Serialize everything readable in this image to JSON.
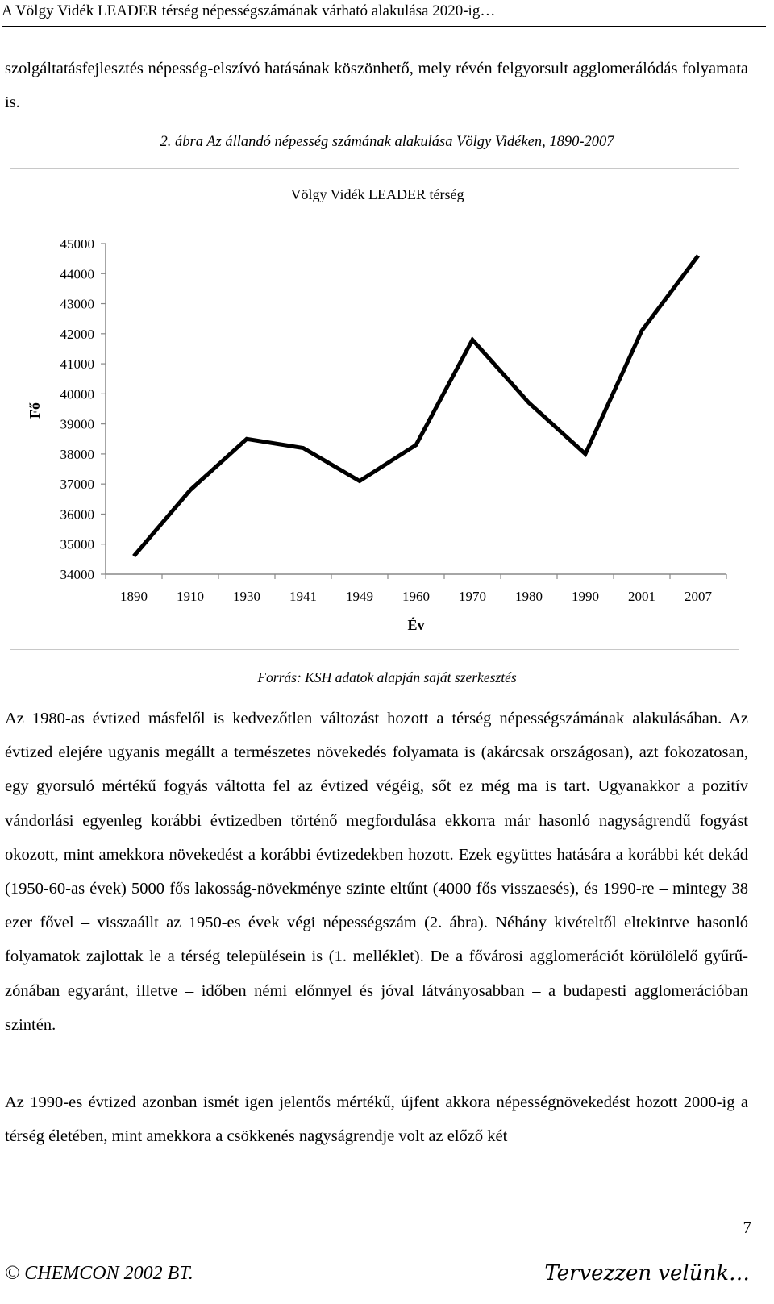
{
  "header": "A Völgy Vidék LEADER térség népességszámának várható alakulása 2020-ig…",
  "para_top": "szolgáltatásfejlesztés népesség-elszívó hatásának köszönhető, mely révén felgyorsult agglomerálódás folyamata is.",
  "figure_caption": "2. ábra Az állandó népesség számának alakulása Völgy Vidéken, 1890-2007",
  "chart_data": {
    "type": "line",
    "title": "Völgy Vidék LEADER térség",
    "xlabel": "Év",
    "ylabel": "Fő",
    "categories": [
      "1890",
      "1910",
      "1930",
      "1941",
      "1949",
      "1960",
      "1970",
      "1980",
      "1990",
      "2001",
      "2007"
    ],
    "values": [
      34600,
      36800,
      38500,
      38200,
      37100,
      38300,
      41800,
      39700,
      38000,
      42100,
      44600
    ],
    "ylim": [
      34000,
      45000
    ],
    "yticks": [
      "34000",
      "35000",
      "36000",
      "37000",
      "38000",
      "39000",
      "40000",
      "41000",
      "42000",
      "43000",
      "44000",
      "45000"
    ],
    "grid": false,
    "legend": "none"
  },
  "source": "Forrás: KSH adatok alapján saját szerkesztés",
  "para_1": "Az 1980-as évtized másfelől is kedvezőtlen változást hozott a térség népességszámának alakulásában. Az évtized elejére ugyanis megállt a természetes növekedés folyamata is (akárcsak országosan), azt fokozatosan, egy gyorsuló mértékű fogyás váltotta fel az évtized végéig, sőt ez még ma is tart. Ugyanakkor a pozitív vándorlási egyenleg korábbi évtizedben történő megfordulása ekkorra már hasonló nagyságrendű fogyást okozott, mint amekkora növekedést a korábbi évtizedekben hozott. Ezek együttes hatására a korábbi két dekád (1950-60-as évek) 5000 fős lakosság-növekménye szinte eltűnt (4000 fős visszaesés), és 1990-re – mintegy 38 ezer fővel – visszaállt az 1950-es évek végi népességszám (2. ábra). Néhány kivételtől eltekintve hasonló folyamatok zajlottak le a térség településein is (1. melléklet). De a fővárosi agglomerációt körülölelő gyűrű-zónában egyaránt, illetve – időben némi előnnyel és jóval látványosabban – a budapesti agglomerációban szintén.",
  "para_2": "Az 1990-es évtized azonban ismét igen jelentős mértékű, újfent akkora népességnövekedést hozott 2000-ig a térség életében, mint amekkora a csökkenés nagyságrendje volt az előző két",
  "page_number": "7",
  "footer_left": "© CHEMCON 2002 BT.",
  "footer_right": "Tervezzen velünk…"
}
